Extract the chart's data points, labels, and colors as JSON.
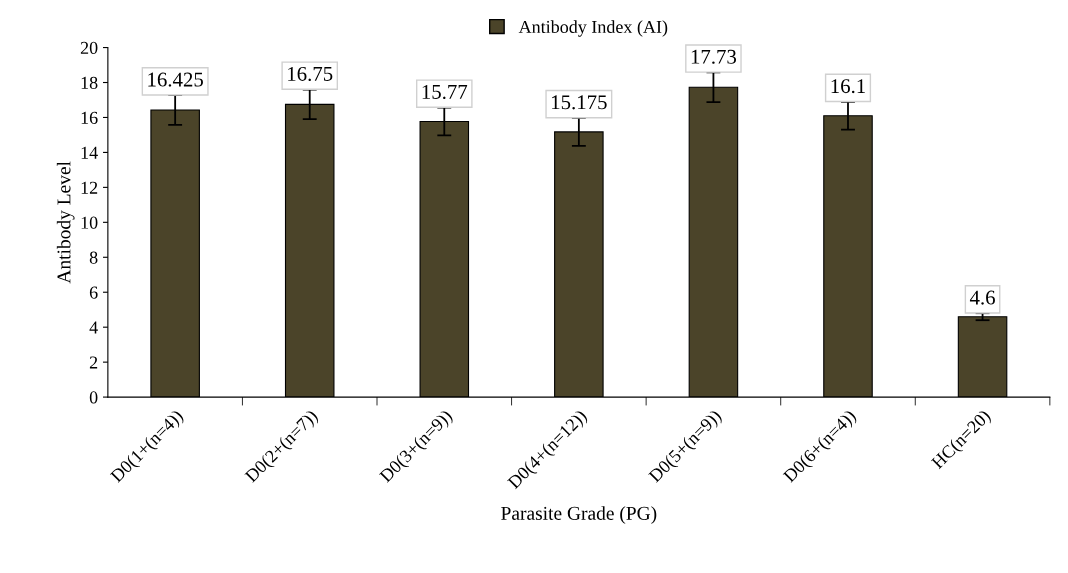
{
  "chart_data": {
    "type": "bar",
    "xlabel": "Parasite Grade (PG)",
    "ylabel": "Antibody Level",
    "categories": [
      "D0(1+(n=4))",
      "D0(2+(n=7))",
      "D0(3+(n=9))",
      "D0(4+(n=12))",
      "D0(5+(n=9))",
      "D0(6+(n=4))",
      "HC(n=20)"
    ],
    "series": [
      {
        "name": "Antibody Index (AI)",
        "color": "#4b4429",
        "values": [
          16.425,
          16.75,
          15.77,
          15.175,
          17.73,
          16.1,
          4.6
        ],
        "errors": [
          0.85,
          0.85,
          0.8,
          0.8,
          0.85,
          0.8,
          0.2
        ]
      }
    ],
    "ylim": [
      0,
      20
    ],
    "yticks": [
      0,
      2,
      4,
      6,
      8,
      10,
      12,
      14,
      16,
      18,
      20
    ],
    "data_labels": true,
    "legend": "top",
    "grid": false
  }
}
